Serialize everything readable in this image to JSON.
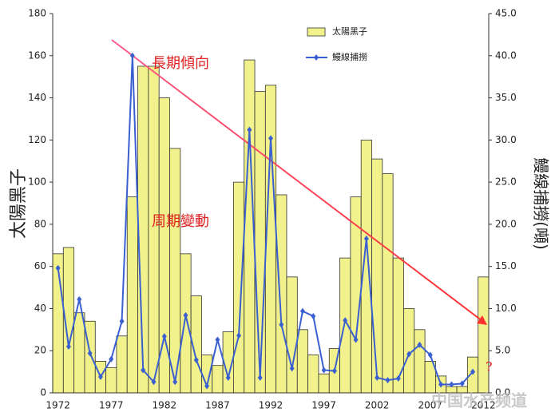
{
  "chart_data": {
    "type": "bar-line",
    "y_label": "太陽黑子",
    "y2_label": "鰻線捕撈(噸)",
    "annotations": [
      "長期傾向",
      "周期變動",
      "?"
    ],
    "watermark": "中国水产频道",
    "categories": [
      "1972",
      null,
      null,
      null,
      null,
      "1977",
      null,
      null,
      null,
      null,
      "1982",
      null,
      null,
      null,
      null,
      "1987",
      null,
      null,
      null,
      null,
      "1992",
      null,
      null,
      null,
      null,
      "1997",
      null,
      null,
      null,
      null,
      "2002",
      null,
      null,
      null,
      null,
      "2007",
      null,
      null,
      null,
      null,
      "2012"
    ],
    "series": [
      {
        "name": "太陽黑子",
        "type": "bar",
        "color": "#f2f28c",
        "values": [
          66,
          69,
          38,
          34,
          15,
          12,
          27,
          93,
          155,
          155,
          140,
          116,
          66,
          46,
          18,
          13,
          29,
          100,
          158,
          143,
          146,
          94,
          55,
          30,
          18,
          9,
          21,
          64,
          93,
          120,
          111,
          104,
          64,
          40,
          30,
          15,
          8,
          3,
          3,
          17,
          55
        ]
      },
      {
        "name": "鰻線捕撈",
        "type": "line",
        "axis": "y2",
        "color": "#3a5fd0",
        "values": [
          14.8,
          5.5,
          11.1,
          4.7,
          1.9,
          4.0,
          8.5,
          40.0,
          2.7,
          1.3,
          6.7,
          1.3,
          9.2,
          3.9,
          0.8,
          6.3,
          1.8,
          6.8,
          31.2,
          1.8,
          30.2,
          8.1,
          2.9,
          9.7,
          9.1,
          2.7,
          2.6,
          8.6,
          6.3,
          18.3,
          1.8,
          1.5,
          1.7,
          4.6,
          5.7,
          4.5,
          1.0,
          1.0,
          1.1,
          2.5,
          null
        ]
      }
    ],
    "ylim": [
      0,
      180
    ],
    "yticks": [
      0,
      20,
      40,
      60,
      80,
      100,
      120,
      140,
      160,
      180
    ],
    "y2lim": [
      0,
      45
    ],
    "y2ticks": [
      {
        "value": 0,
        "label": "0.0"
      },
      {
        "value": 5,
        "label": "5.0"
      },
      {
        "value": 10,
        "label": "10.0"
      },
      {
        "value": 15,
        "label": "15.0"
      },
      {
        "value": 20,
        "label": "20.0"
      },
      {
        "value": 25,
        "label": "25.0"
      },
      {
        "value": 30,
        "label": "30.0"
      },
      {
        "value": 35,
        "label": "35.0"
      },
      {
        "value": 40,
        "label": "40.0"
      },
      {
        "value": 45,
        "label": "45.0"
      }
    ]
  }
}
